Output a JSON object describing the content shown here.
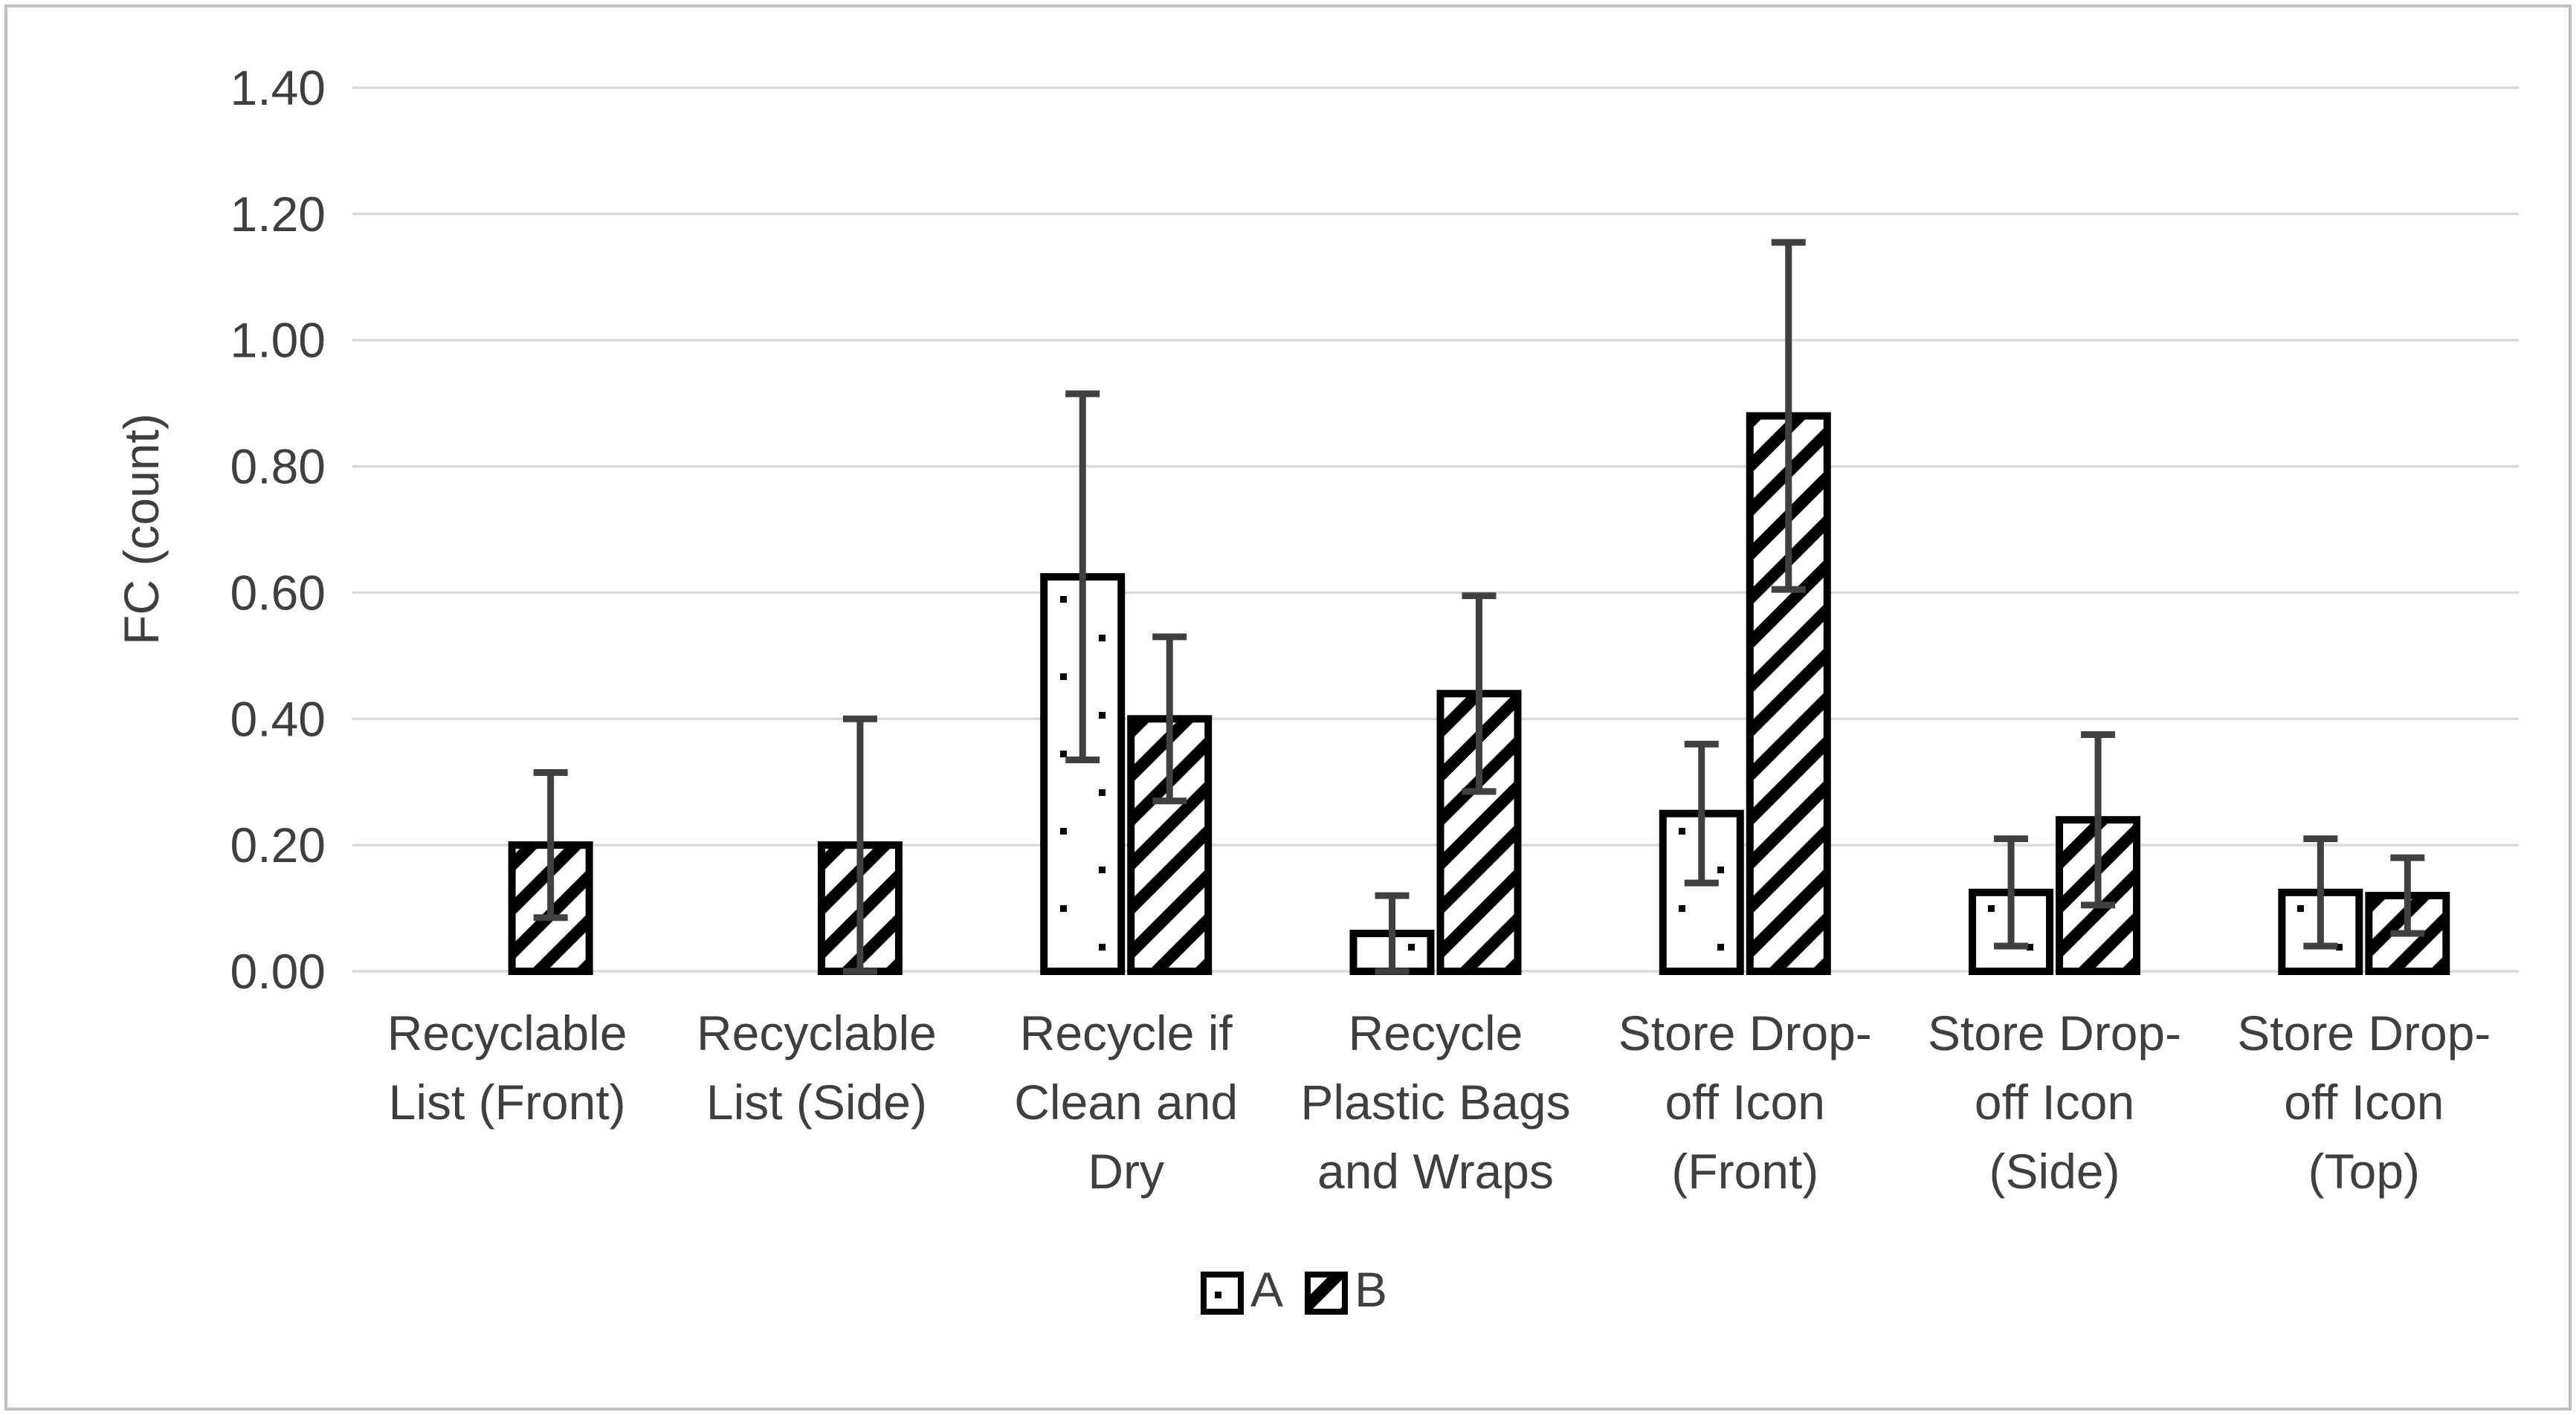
{
  "chart_data": {
    "type": "bar",
    "title": "",
    "xlabel": "",
    "ylabel": "FC (count)",
    "ylim": [
      0,
      1.4
    ],
    "grid": true,
    "legend_position": "bottom-center",
    "yticks": [
      {
        "label": "0.00",
        "value": 0.0
      },
      {
        "label": "0.20",
        "value": 0.2
      },
      {
        "label": "0.40",
        "value": 0.4
      },
      {
        "label": "0.60",
        "value": 0.6
      },
      {
        "label": "0.80",
        "value": 0.8
      },
      {
        "label": "1.00",
        "value": 1.0
      },
      {
        "label": "1.20",
        "value": 1.2
      },
      {
        "label": "1.40",
        "value": 1.4
      }
    ],
    "categories": [
      "Recyclable List (Front)",
      "Recyclable List (Side)",
      "Recycle if Clean and Dry",
      "Recycle Plastic Bags and Wraps",
      "Store Drop-off Icon (Front)",
      "Store Drop-off Icon (Side)",
      "Store Drop-off Icon (Top)"
    ],
    "categories_wrapped": [
      [
        "Recyclable",
        "List (Front)"
      ],
      [
        "Recyclable",
        "List (Side)"
      ],
      [
        "Recycle if",
        "Clean and",
        "Dry"
      ],
      [
        "Recycle",
        "Plastic Bags",
        "and Wraps"
      ],
      [
        "Store Drop-",
        "off Icon",
        "(Front)"
      ],
      [
        "Store Drop-",
        "off Icon",
        "(Side)"
      ],
      [
        "Store Drop-",
        "off Icon",
        "(Top)"
      ]
    ],
    "series": [
      {
        "name": "A",
        "pattern": "dots",
        "values": [
          0,
          0,
          0.625,
          0.06,
          0.25,
          0.125,
          0.125
        ],
        "errors": [
          0,
          0,
          0.29,
          0.06,
          0.11,
          0.085,
          0.085
        ]
      },
      {
        "name": "B",
        "pattern": "diagonal-hatch",
        "values": [
          0.2,
          0.2,
          0.4,
          0.44,
          0.88,
          0.24,
          0.12
        ],
        "errors": [
          0.115,
          0.2,
          0.13,
          0.155,
          0.275,
          0.135,
          0.06
        ]
      }
    ],
    "colors": {
      "bar_border": "#000000",
      "bar_fill": "#FFFFFF",
      "error_bar": "#404040",
      "gridline": "#D9D9D9",
      "text": "#3F3F3F",
      "frame_border": "#BFBFBF",
      "background": "#FFFFFF"
    }
  }
}
